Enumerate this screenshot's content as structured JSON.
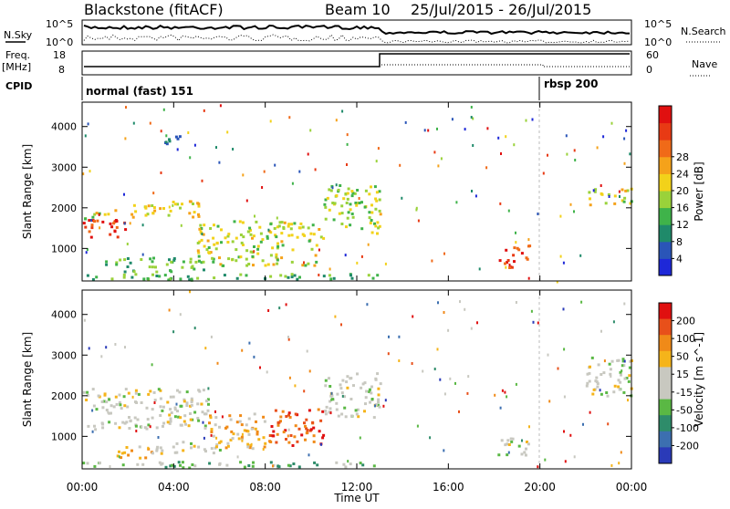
{
  "header": {
    "station": "Blackstone (fitACF)",
    "beam": "Beam 10",
    "dates": "25/Jul/2015 - 26/Jul/2015"
  },
  "summary_panel": {
    "nsky_label": "N.Sky",
    "nsky_ticks": [
      "10^5",
      "10^0"
    ],
    "nsearch_label": "N.Search",
    "nsearch_ticks": [
      "10^5",
      "10^0"
    ],
    "freq_label": "Freq.",
    "freq_unit": "[MHz]",
    "freq_ticks": [
      "18",
      "8"
    ],
    "nave_label": "Nave",
    "nave_ticks": [
      "60",
      "0"
    ],
    "cpid_label": "CPID",
    "cpid_segments": [
      "normal (fast) 151",
      "rbsp 200"
    ]
  },
  "colors": {
    "power_scale": [
      "#1e28d8",
      "#2a55b8",
      "#1f8a6a",
      "#3fb34a",
      "#9ad23a",
      "#f2d21a",
      "#f5a21a",
      "#f06a18",
      "#e83a14",
      "#e01010"
    ],
    "velocity_scale": [
      "#2a3ab8",
      "#3c6fb0",
      "#2e8c6a",
      "#5ab844",
      "#c8c8c0",
      "#c8c8c0",
      "#f5b41a",
      "#f08a18",
      "#e8501a",
      "#e01010"
    ]
  },
  "chart_data": [
    {
      "type": "heatmap",
      "name": "power",
      "ylabel": "Slant Range [km]",
      "ylim": [
        200,
        4600
      ],
      "yticks": [
        "1000",
        "2000",
        "3000",
        "4000"
      ],
      "xlim_hours": [
        0,
        24
      ],
      "xticks": [
        "00:00",
        "04:00",
        "08:00",
        "12:00",
        "16:00",
        "20:00",
        "00:00"
      ],
      "colorbar_label": "Power [dB]",
      "colorbar_ticks": [
        "4",
        "8",
        "12",
        "16",
        "20",
        "24",
        "28"
      ],
      "features": [
        {
          "t0": 0.0,
          "t1": 2.0,
          "r0": 1250,
          "r1": 1750,
          "level": 0.9
        },
        {
          "t0": 0.0,
          "t1": 1.5,
          "r0": 1750,
          "r1": 2000,
          "level": 0.5
        },
        {
          "t0": 2.0,
          "t1": 5.5,
          "r0": 1800,
          "r1": 2200,
          "level": 0.55
        },
        {
          "t0": 5.0,
          "t1": 10.5,
          "r0": 600,
          "r1": 1700,
          "level": 0.5
        },
        {
          "t0": 1.0,
          "t1": 5.5,
          "r0": 450,
          "r1": 800,
          "level": 0.35
        },
        {
          "t0": 10.5,
          "t1": 13.0,
          "r0": 1500,
          "r1": 2600,
          "level": 0.45
        },
        {
          "t0": 12.6,
          "t1": 13.0,
          "r0": 1400,
          "r1": 2000,
          "level": 0.6
        },
        {
          "t0": 18.2,
          "t1": 19.5,
          "r0": 550,
          "r1": 1100,
          "level": 0.85
        },
        {
          "t0": 22.0,
          "t1": 24.0,
          "r0": 2100,
          "r1": 2500,
          "level": 0.5
        },
        {
          "t0": 3.5,
          "t1": 4.5,
          "r0": 3600,
          "r1": 3900,
          "level": 0.2
        },
        {
          "t0": 0.0,
          "t1": 13.0,
          "r0": 250,
          "r1": 400,
          "level": 0.35
        }
      ]
    },
    {
      "type": "heatmap",
      "name": "velocity",
      "ylabel": "Slant Range [km]",
      "ylim": [
        200,
        4600
      ],
      "yticks": [
        "1000",
        "2000",
        "3000",
        "4000"
      ],
      "xlim_hours": [
        0,
        24
      ],
      "xticks": [
        "00:00",
        "04:00",
        "08:00",
        "12:00",
        "16:00",
        "20:00",
        "00:00"
      ],
      "xlabel": "Time UT",
      "colorbar_label": "Velocity [m s^-1]",
      "colorbar_ticks": [
        "200",
        "100",
        "50",
        "15",
        "-15",
        "-50",
        "-100",
        "-200"
      ],
      "features": [
        {
          "t0": 0.0,
          "t1": 5.5,
          "r0": 1200,
          "r1": 2200,
          "level": 0.5
        },
        {
          "t0": 1.5,
          "t1": 3.0,
          "r0": 450,
          "r1": 800,
          "level": 0.7
        },
        {
          "t0": 3.0,
          "t1": 6.0,
          "r0": 600,
          "r1": 900,
          "level": 0.5
        },
        {
          "t0": 5.5,
          "t1": 8.0,
          "r0": 700,
          "r1": 1600,
          "level": 0.65
        },
        {
          "t0": 8.0,
          "t1": 10.5,
          "r0": 800,
          "r1": 1700,
          "level": 0.85
        },
        {
          "t0": 10.5,
          "t1": 13.0,
          "r0": 1500,
          "r1": 2600,
          "level": 0.5
        },
        {
          "t0": 18.0,
          "t1": 19.5,
          "r0": 550,
          "r1": 1000,
          "level": 0.5
        },
        {
          "t0": 22.0,
          "t1": 24.0,
          "r0": 2000,
          "r1": 3000,
          "level": 0.5
        },
        {
          "t0": 0.0,
          "t1": 13.0,
          "r0": 250,
          "r1": 400,
          "level": 0.35
        }
      ]
    }
  ]
}
